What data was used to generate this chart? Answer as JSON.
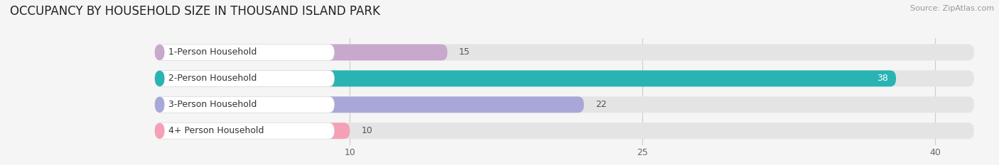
{
  "title": "OCCUPANCY BY HOUSEHOLD SIZE IN THOUSAND ISLAND PARK",
  "source": "Source: ZipAtlas.com",
  "categories": [
    "1-Person Household",
    "2-Person Household",
    "3-Person Household",
    "4+ Person Household"
  ],
  "values": [
    15,
    38,
    22,
    10
  ],
  "bar_colors": [
    "#c8a8cc",
    "#2ab3b3",
    "#a8a8d8",
    "#f5a0b5"
  ],
  "background_color": "#f5f5f5",
  "bar_bg_color": "#e4e4e4",
  "label_bg_color": "#ffffff",
  "xlim_max": 42,
  "xticks": [
    10,
    25,
    40
  ],
  "title_fontsize": 12,
  "label_fontsize": 9,
  "value_fontsize": 9,
  "source_fontsize": 8,
  "figsize": [
    14.06,
    2.33
  ],
  "dpi": 100
}
